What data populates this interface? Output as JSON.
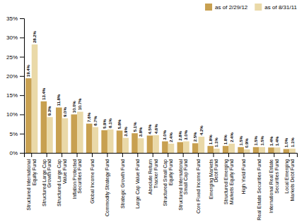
{
  "chart_data": {
    "type": "bar",
    "categories": [
      "Structured International\nEquity Fund",
      "Structured Large Cap\nGrowth Fund",
      "Structured Large Cap\nValue Fund",
      "Inflation Protected\nSecurities Fund",
      "Global Income Fund",
      "Commodity Strategy Fund",
      "Strategic Growth Fund",
      "Large Cap Value Fund",
      "Absolute Return\nTracker Fund",
      "Structured Small Cap\nEquity Fund",
      "Structured International\nSmall Cap Fund",
      "Core Fixed Income Fund",
      "Emerging Markets\nDebt Fund",
      "Structured Emerging\nMarkets Equity Fund",
      "High Yield Fund",
      "Real Estate Securities Fund",
      "International Real Estate\nSecurities Fund",
      "Local Emerging\nMarkets Debt Fund"
    ],
    "series": [
      {
        "name": "as of 2/29/12",
        "color": "#C8A050",
        "values": [
          19.4,
          13.4,
          11.8,
          10.0,
          7.6,
          5.9,
          5.8,
          5.1,
          4.5,
          3.0,
          2.8,
          2.5,
          1.8,
          1.8,
          1.5,
          1.5,
          1.4,
          1.0
        ],
        "value_labels": [
          "19.4%",
          "13.4%",
          "11.8%",
          "10.0%",
          "7.6%",
          "5.9%",
          "5.8%",
          "5.1%",
          "4.5%",
          "3.0%",
          "2.8%",
          "2.5%",
          "1.8%",
          "1.8%",
          "1.5%",
          "1.5%",
          "1.4%",
          "1.0%"
        ]
      },
      {
        "name": "as of 8/31/11",
        "color": "#EAD9A8",
        "values": [
          28.2,
          9.3,
          9.0,
          10.7,
          6.7,
          6.1,
          3.9,
          3.8,
          4.6,
          2.4,
          3.0,
          4.2,
          1.1,
          2.4,
          0.9,
          1.5,
          1.4,
          1.1
        ],
        "value_labels": [
          "28.2%",
          "9.3%",
          "9.0%",
          "10.7%",
          "6.7%",
          "6.1%",
          "3.9%",
          "3.8%",
          "4.6%",
          "2.4%",
          "3.0%",
          "4.2%",
          "1.1%",
          "2.4%",
          "0.9%",
          "1.5%",
          "1.4%",
          "1.1%"
        ]
      }
    ],
    "ylim": [
      0,
      35
    ],
    "yticks": [
      {
        "value": 0,
        "label": "0%"
      },
      {
        "value": 5,
        "label": "5%"
      },
      {
        "value": 10,
        "label": "10%"
      },
      {
        "value": 15,
        "label": "15%"
      },
      {
        "value": 20,
        "label": "20%"
      },
      {
        "value": 25,
        "label": "25%"
      },
      {
        "value": 30,
        "label": "30%"
      },
      {
        "value": 35,
        "label": "35%"
      }
    ],
    "grid": false,
    "legend": "upper right",
    "data_labels": true
  }
}
